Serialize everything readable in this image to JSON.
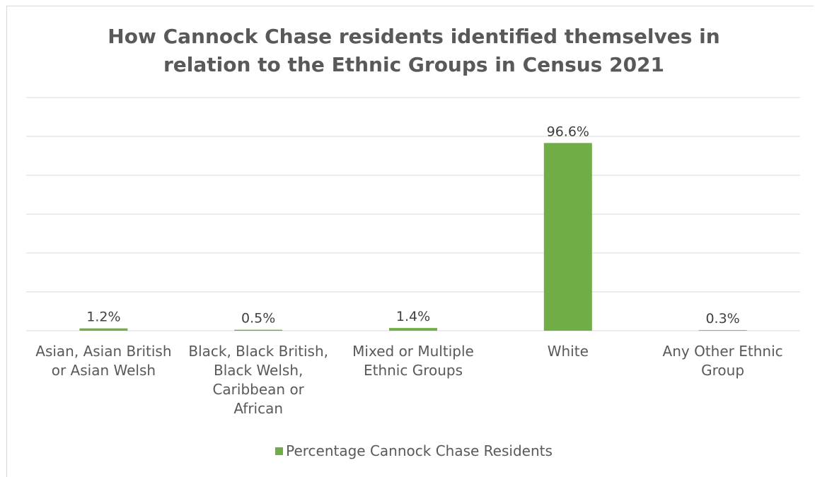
{
  "chart_data": {
    "type": "bar",
    "title_lines": [
      "How Cannock Chase residents identified themselves in",
      "relation to the Ethnic Groups in Census 2021"
    ],
    "categories": [
      [
        "Asian, Asian British",
        "or Asian Welsh"
      ],
      [
        "Black, Black British,",
        "Black Welsh,",
        "Caribbean or",
        "African"
      ],
      [
        "Mixed or Multiple",
        "Ethnic Groups"
      ],
      [
        "White"
      ],
      [
        "Any Other Ethnic",
        "Group"
      ]
    ],
    "series": [
      {
        "name": "Percentage Cannock Chase Residents",
        "values": [
          1.2,
          0.5,
          1.4,
          96.6,
          0.3
        ],
        "data_labels": [
          "1.2%",
          "0.5%",
          "1.4%",
          "96.6%",
          "0.3%"
        ],
        "color": "#70ad47"
      }
    ],
    "ylim": [
      0,
      120
    ],
    "gridlines": true,
    "legend_position": "bottom"
  }
}
